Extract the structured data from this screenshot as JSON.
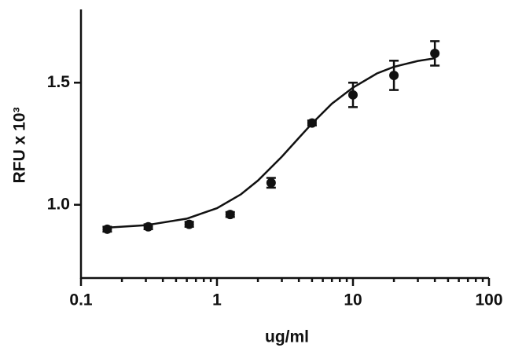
{
  "chart_data": {
    "type": "scatter",
    "x_label": "ug/ml",
    "y_label": "RFU x 10³",
    "xscale": "log",
    "xlim": [
      0.1,
      100
    ],
    "xticks": [
      0.1,
      1,
      10,
      100
    ],
    "xminorticks": [
      0.2,
      0.3,
      0.4,
      0.5,
      0.6,
      0.7,
      0.8,
      0.9,
      2,
      3,
      4,
      5,
      6,
      7,
      8,
      9,
      20,
      30,
      40,
      50,
      60,
      70,
      80,
      90
    ],
    "ylim": [
      0.7,
      1.8
    ],
    "yticks": [
      {
        "value": 1,
        "label": "1.0"
      },
      1.5
    ],
    "series": [
      {
        "color": "#111111",
        "x": [
          0.156,
          0.3125,
          0.625,
          1.25,
          2.5,
          5,
          10,
          20,
          40
        ],
        "values": [
          0.9,
          0.91,
          0.92,
          0.96,
          1.09,
          1.335,
          1.45,
          1.53,
          1.62
        ],
        "errors": [
          0.01,
          0.01,
          0.01,
          0.01,
          0.02,
          0.01,
          0.05,
          0.06,
          0.05
        ]
      }
    ],
    "fit": {
      "type": "line",
      "color": "#111111",
      "x": [
        0.15,
        0.3,
        0.6,
        1,
        1.5,
        2,
        3,
        4,
        5,
        7,
        10,
        15,
        20,
        30,
        40
      ],
      "values": [
        0.906,
        0.916,
        0.943,
        0.986,
        1.043,
        1.099,
        1.197,
        1.274,
        1.333,
        1.414,
        1.48,
        1.538,
        1.565,
        1.589,
        1.6
      ]
    }
  }
}
